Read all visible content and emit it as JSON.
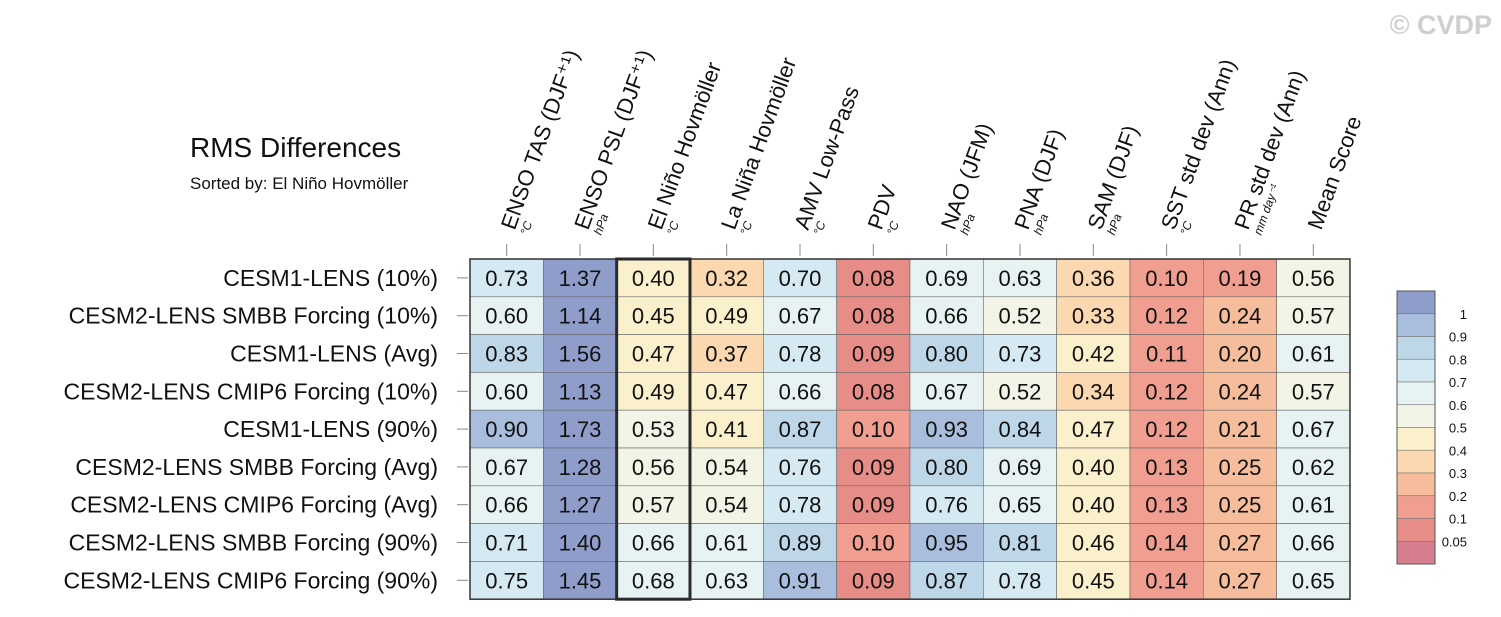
{
  "copyright": "© CVDP",
  "chart_data": {
    "type": "heatmap",
    "title": "RMS Differences",
    "subtitle": "Sorted by: El Niño Hovmöller",
    "columns": [
      {
        "label": "ENSO TAS (DJF⁺¹)",
        "unit": "°C"
      },
      {
        "label": "ENSO PSL (DJF⁺¹)",
        "unit": "hPa"
      },
      {
        "label": "El Niño Hovmöller",
        "unit": "°C"
      },
      {
        "label": "La Niña Hovmöller",
        "unit": "°C"
      },
      {
        "label": "AMV Low-Pass",
        "unit": "°C"
      },
      {
        "label": "PDV",
        "unit": "°C"
      },
      {
        "label": "NAO (JFM)",
        "unit": "hPa"
      },
      {
        "label": "PNA (DJF)",
        "unit": "hPa"
      },
      {
        "label": "SAM (DJF)",
        "unit": "hPa"
      },
      {
        "label": "SST std dev (Ann)",
        "unit": "°C"
      },
      {
        "label": "PR std dev (Ann)",
        "unit": "mm day⁻¹"
      },
      {
        "label": "Mean Score",
        "unit": ""
      }
    ],
    "rows": [
      {
        "name": "CESM1-LENS (10%)",
        "values": [
          0.73,
          1.37,
          0.4,
          0.32,
          0.7,
          0.08,
          0.69,
          0.63,
          0.36,
          0.1,
          0.19,
          0.56
        ]
      },
      {
        "name": "CESM2-LENS SMBB Forcing (10%)",
        "values": [
          0.6,
          1.14,
          0.45,
          0.49,
          0.67,
          0.08,
          0.66,
          0.52,
          0.33,
          0.12,
          0.24,
          0.57
        ]
      },
      {
        "name": "CESM1-LENS (Avg)",
        "values": [
          0.83,
          1.56,
          0.47,
          0.37,
          0.78,
          0.09,
          0.8,
          0.73,
          0.42,
          0.11,
          0.2,
          0.61
        ]
      },
      {
        "name": "CESM2-LENS CMIP6 Forcing (10%)",
        "values": [
          0.6,
          1.13,
          0.49,
          0.47,
          0.66,
          0.08,
          0.67,
          0.52,
          0.34,
          0.12,
          0.24,
          0.57
        ]
      },
      {
        "name": "CESM1-LENS (90%)",
        "values": [
          0.9,
          1.73,
          0.53,
          0.41,
          0.87,
          0.1,
          0.93,
          0.84,
          0.47,
          0.12,
          0.21,
          0.67
        ]
      },
      {
        "name": "CESM2-LENS SMBB Forcing (Avg)",
        "values": [
          0.67,
          1.28,
          0.56,
          0.54,
          0.76,
          0.09,
          0.8,
          0.69,
          0.4,
          0.13,
          0.25,
          0.62
        ]
      },
      {
        "name": "CESM2-LENS CMIP6 Forcing (Avg)",
        "values": [
          0.66,
          1.27,
          0.57,
          0.54,
          0.78,
          0.09,
          0.76,
          0.65,
          0.4,
          0.13,
          0.25,
          0.61
        ]
      },
      {
        "name": "CESM2-LENS SMBB Forcing (90%)",
        "values": [
          0.71,
          1.4,
          0.66,
          0.61,
          0.89,
          0.1,
          0.95,
          0.81,
          0.46,
          0.14,
          0.27,
          0.66
        ]
      },
      {
        "name": "CESM2-LENS CMIP6 Forcing (90%)",
        "values": [
          0.75,
          1.45,
          0.68,
          0.63,
          0.91,
          0.09,
          0.87,
          0.78,
          0.45,
          0.14,
          0.27,
          0.65
        ]
      }
    ],
    "highlighted_column": "El Niño Hovmöller",
    "colorbar": {
      "ticks": [
        "1",
        "0.9",
        "0.8",
        "0.7",
        "0.6",
        "0.5",
        "0.4",
        "0.3",
        "0.2",
        "0.1",
        "0.05"
      ],
      "bins": [
        {
          "min": 1.0,
          "color": "#8f9dcb"
        },
        {
          "min": 0.9,
          "color": "#a9bedd"
        },
        {
          "min": 0.8,
          "color": "#bed7e8"
        },
        {
          "min": 0.7,
          "color": "#d4e9f1"
        },
        {
          "min": 0.6,
          "color": "#e7f3f2"
        },
        {
          "min": 0.5,
          "color": "#f3f4e6"
        },
        {
          "min": 0.4,
          "color": "#fbf0cc"
        },
        {
          "min": 0.3,
          "color": "#fbd8b0"
        },
        {
          "min": 0.2,
          "color": "#f6bd9c"
        },
        {
          "min": 0.1,
          "color": "#ef9e90"
        },
        {
          "min": 0.05,
          "color": "#e68d88"
        },
        {
          "min": 0.0,
          "color": "#d67d8e"
        }
      ]
    }
  }
}
